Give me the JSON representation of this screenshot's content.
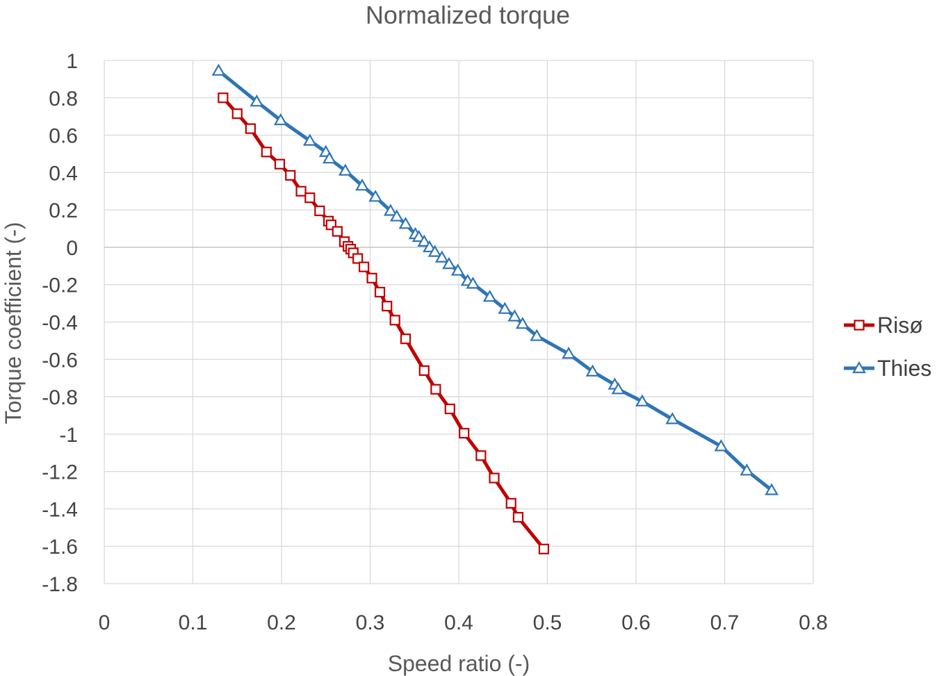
{
  "chart_data": {
    "type": "line",
    "title": "Normalized torque",
    "xlabel": "Speed ratio (-)",
    "ylabel": "Torque coefficient (-)",
    "xlim": [
      0,
      0.8
    ],
    "ylim": [
      -1.8,
      1
    ],
    "x_ticks": [
      "0",
      "0.1",
      "0.2",
      "0.3",
      "0.4",
      "0.5",
      "0.6",
      "0.7",
      "0.8"
    ],
    "y_ticks": [
      "1",
      "0.8",
      "0.6",
      "0.4",
      "0.2",
      "0",
      "-0.2",
      "-0.4",
      "-0.6",
      "-0.8",
      "-1",
      "-1.2",
      "-1.4",
      "-1.6",
      "-1.8"
    ],
    "grid": true,
    "legend_position": "right",
    "series": [
      {
        "name": "Risø",
        "color": "#C00000",
        "marker": "square",
        "points": [
          [
            0.134,
            0.8
          ],
          [
            0.15,
            0.715
          ],
          [
            0.165,
            0.635
          ],
          [
            0.183,
            0.51
          ],
          [
            0.198,
            0.445
          ],
          [
            0.21,
            0.385
          ],
          [
            0.222,
            0.3
          ],
          [
            0.232,
            0.265
          ],
          [
            0.243,
            0.195
          ],
          [
            0.253,
            0.14
          ],
          [
            0.256,
            0.12
          ],
          [
            0.263,
            0.085
          ],
          [
            0.271,
            0.03
          ],
          [
            0.275,
            0.005
          ],
          [
            0.278,
            -0.01
          ],
          [
            0.281,
            -0.03
          ],
          [
            0.286,
            -0.06
          ],
          [
            0.293,
            -0.105
          ],
          [
            0.302,
            -0.165
          ],
          [
            0.311,
            -0.24
          ],
          [
            0.319,
            -0.315
          ],
          [
            0.328,
            -0.39
          ],
          [
            0.34,
            -0.49
          ],
          [
            0.361,
            -0.66
          ],
          [
            0.374,
            -0.76
          ],
          [
            0.39,
            -0.865
          ],
          [
            0.406,
            -0.995
          ],
          [
            0.425,
            -1.115
          ],
          [
            0.44,
            -1.235
          ],
          [
            0.459,
            -1.37
          ],
          [
            0.467,
            -1.445
          ],
          [
            0.496,
            -1.615
          ]
        ]
      },
      {
        "name": "Thies",
        "color": "#2E75B6",
        "marker": "triangle",
        "points": [
          [
            0.129,
            0.945
          ],
          [
            0.172,
            0.78
          ],
          [
            0.199,
            0.68
          ],
          [
            0.232,
            0.57
          ],
          [
            0.25,
            0.51
          ],
          [
            0.254,
            0.475
          ],
          [
            0.272,
            0.41
          ],
          [
            0.291,
            0.33
          ],
          [
            0.306,
            0.27
          ],
          [
            0.323,
            0.195
          ],
          [
            0.33,
            0.165
          ],
          [
            0.34,
            0.125
          ],
          [
            0.351,
            0.07
          ],
          [
            0.355,
            0.055
          ],
          [
            0.361,
            0.03
          ],
          [
            0.367,
            0.0
          ],
          [
            0.373,
            -0.025
          ],
          [
            0.381,
            -0.055
          ],
          [
            0.389,
            -0.09
          ],
          [
            0.399,
            -0.125
          ],
          [
            0.41,
            -0.18
          ],
          [
            0.416,
            -0.195
          ],
          [
            0.435,
            -0.265
          ],
          [
            0.452,
            -0.33
          ],
          [
            0.463,
            -0.37
          ],
          [
            0.472,
            -0.41
          ],
          [
            0.488,
            -0.475
          ],
          [
            0.524,
            -0.57
          ],
          [
            0.551,
            -0.665
          ],
          [
            0.576,
            -0.735
          ],
          [
            0.58,
            -0.76
          ],
          [
            0.607,
            -0.825
          ],
          [
            0.641,
            -0.92
          ],
          [
            0.696,
            -1.065
          ],
          [
            0.725,
            -1.195
          ],
          [
            0.753,
            -1.3
          ]
        ]
      }
    ]
  }
}
